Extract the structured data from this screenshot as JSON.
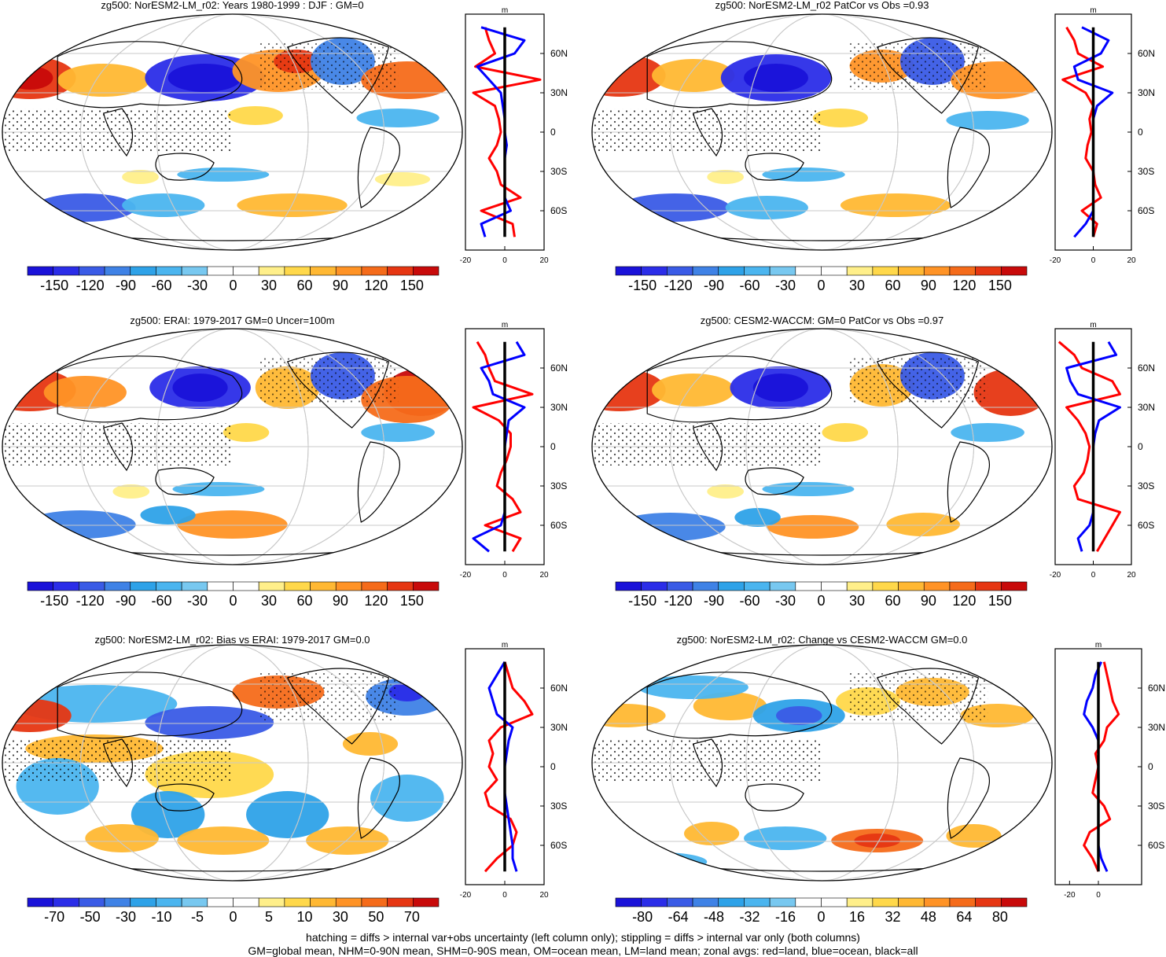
{
  "colors": {
    "map_levels": [
      "#1a12d9",
      "#2b2de8",
      "#3a5be6",
      "#3f82e6",
      "#2ea2e8",
      "#4bb5ef",
      "#78c8f0",
      "#ffffff",
      "#ffffff",
      "#ffef8a",
      "#ffd84a",
      "#ffb833",
      "#ff9326",
      "#f56b1a",
      "#e63612",
      "#c80a0a"
    ],
    "land_line": "#ff0000",
    "ocean_line": "#0000ff",
    "all_line": "#000000",
    "coast": "#000000",
    "grid": "#c8c8c8"
  },
  "chart_data": [
    {
      "type": "heatmap",
      "id": "p1",
      "title": "zg500: NorESM2-LM_r02: Years 1980-1999 : DJF : GM=0",
      "colorbar_labels": [
        "-150",
        "-120",
        "-90",
        "-60",
        "-30",
        "0",
        "30",
        "60",
        "90",
        "120",
        "150"
      ],
      "zonal": {
        "xlim": [
          -20,
          20
        ],
        "x_ticks": [
          "-20",
          "0",
          "20"
        ],
        "y_ticks": [
          "60N",
          "30N",
          "0",
          "30S",
          "60S"
        ],
        "units": "m",
        "lat": [
          80,
          70,
          60,
          50,
          40,
          30,
          20,
          10,
          0,
          -10,
          -20,
          -30,
          -40,
          -50,
          -60,
          -70,
          -80
        ],
        "land": [
          -10,
          -8,
          -5,
          -15,
          18,
          -16,
          -5,
          -3,
          -2,
          -4,
          -8,
          -4,
          -2,
          8,
          -12,
          4,
          5
        ],
        "ocean": [
          -12,
          10,
          5,
          -14,
          -8,
          -2,
          -1,
          0,
          0,
          1,
          0,
          0,
          0,
          0,
          3,
          -12,
          -10
        ],
        "all": [
          0,
          0,
          0,
          0,
          0,
          0,
          0,
          0,
          0,
          0,
          0,
          0,
          0,
          0,
          0,
          0,
          0
        ]
      }
    },
    {
      "type": "heatmap",
      "id": "p2",
      "title": "zg500: NorESM2-LM_r02 PatCor vs Obs =0.93",
      "colorbar_labels": [
        "-150",
        "-120",
        "-90",
        "-60",
        "-30",
        "0",
        "30",
        "60",
        "90",
        "120",
        "150"
      ],
      "zonal": {
        "xlim": [
          -20,
          20
        ],
        "x_ticks": [
          "-20",
          "0",
          "20"
        ],
        "y_ticks": [
          "60N",
          "30N",
          "0",
          "30S",
          "60S"
        ],
        "units": "m",
        "lat": [
          80,
          70,
          60,
          50,
          40,
          30,
          20,
          10,
          0,
          -10,
          -20,
          -30,
          -40,
          -50,
          -60,
          -70,
          -80
        ],
        "land": [
          -14,
          -10,
          -8,
          5,
          -16,
          -4,
          0,
          -2,
          -1,
          -3,
          -4,
          0,
          1,
          4,
          -6,
          2,
          0
        ],
        "ocean": [
          -6,
          8,
          4,
          -10,
          -8,
          10,
          2,
          0,
          0,
          0,
          0,
          0,
          0,
          0,
          0,
          -4,
          -10
        ],
        "all": [
          0,
          0,
          0,
          0,
          0,
          0,
          0,
          0,
          0,
          0,
          0,
          0,
          0,
          0,
          0,
          0,
          0
        ]
      }
    },
    {
      "type": "heatmap",
      "id": "p3",
      "title": "zg500: ERAI: 1979-2017 GM=0 Uncer=100m",
      "colorbar_labels": [
        "-150",
        "-120",
        "-90",
        "-60",
        "-30",
        "0",
        "30",
        "60",
        "90",
        "120",
        "150"
      ],
      "zonal": {
        "xlim": [
          -20,
          20
        ],
        "x_ticks": [
          "-20",
          "0",
          "20"
        ],
        "y_ticks": [
          "60N",
          "30N",
          "0",
          "30S",
          "60S"
        ],
        "units": "m",
        "lat": [
          80,
          70,
          60,
          50,
          40,
          30,
          20,
          10,
          0,
          -10,
          -20,
          -30,
          -40,
          -50,
          -60,
          -70,
          -80
        ],
        "land": [
          -14,
          -10,
          -8,
          -5,
          14,
          -16,
          -3,
          3,
          3,
          1,
          -2,
          -4,
          4,
          8,
          -10,
          8,
          4
        ],
        "ocean": [
          6,
          10,
          -12,
          -8,
          -6,
          10,
          2,
          1,
          0,
          0,
          0,
          0,
          0,
          0,
          -2,
          -16,
          -8
        ],
        "all": [
          0,
          0,
          0,
          0,
          0,
          0,
          0,
          0,
          0,
          0,
          0,
          0,
          0,
          0,
          0,
          0,
          0
        ]
      }
    },
    {
      "type": "heatmap",
      "id": "p4",
      "title": "zg500: CESM2-WACCM: GM=0 PatCor vs Obs =0.97",
      "colorbar_labels": [
        "-150",
        "-120",
        "-90",
        "-60",
        "-30",
        "0",
        "30",
        "60",
        "90",
        "120",
        "150"
      ],
      "zonal": {
        "xlim": [
          -20,
          20
        ],
        "x_ticks": [
          "-20",
          "0",
          "20"
        ],
        "y_ticks": [
          "60N",
          "30N",
          "0",
          "30S",
          "60S"
        ],
        "units": "m",
        "lat": [
          80,
          70,
          60,
          50,
          40,
          30,
          20,
          10,
          0,
          -10,
          -20,
          -30,
          -40,
          -50,
          -60,
          -70,
          -80
        ],
        "land": [
          -18,
          -10,
          -6,
          10,
          14,
          -14,
          -8,
          -4,
          -2,
          -3,
          -5,
          -10,
          -8,
          14,
          10,
          6,
          2
        ],
        "ocean": [
          8,
          12,
          -14,
          -12,
          -8,
          14,
          3,
          1,
          0,
          0,
          0,
          0,
          0,
          0,
          -2,
          -8,
          -6
        ],
        "all": [
          0,
          0,
          0,
          0,
          0,
          0,
          0,
          0,
          0,
          0,
          0,
          0,
          0,
          0,
          0,
          0,
          0
        ]
      }
    },
    {
      "type": "heatmap",
      "id": "p5",
      "title": "zg500: NorESM2-LM_r02: Bias vs ERAI: 1979-2017 GM=0.0",
      "colorbar_labels": [
        "-70",
        "-50",
        "-30",
        "-10",
        "-5",
        "0",
        "5",
        "10",
        "30",
        "50",
        "70"
      ],
      "zonal": {
        "xlim": [
          -20,
          20
        ],
        "x_ticks": [
          "-20",
          "0",
          "20"
        ],
        "y_ticks": [
          "60N",
          "30N",
          "0",
          "30S",
          "60S"
        ],
        "units": "m",
        "lat": [
          80,
          70,
          60,
          50,
          40,
          30,
          20,
          10,
          0,
          -10,
          -20,
          -30,
          -40,
          -50,
          -60,
          -70,
          -80
        ],
        "land": [
          0,
          2,
          4,
          10,
          14,
          -2,
          -8,
          -6,
          -8,
          -4,
          -10,
          -8,
          3,
          6,
          4,
          -4,
          -10
        ],
        "ocean": [
          0,
          -4,
          -8,
          -6,
          -4,
          4,
          2,
          1,
          0,
          0,
          0,
          1,
          2,
          3,
          4,
          4,
          6
        ],
        "all": [
          0,
          0,
          0,
          0,
          0,
          0,
          0,
          0,
          0,
          0,
          0,
          0,
          0,
          0,
          0,
          0,
          0
        ]
      }
    },
    {
      "type": "heatmap",
      "id": "p6",
      "title": "zg500: NorESM2-LM_r02: Change vs CESM2-WACCM GM=0.0",
      "colorbar_labels": [
        "-80",
        "-64",
        "-48",
        "-32",
        "-16",
        "0",
        "16",
        "32",
        "48",
        "64",
        "80"
      ],
      "zonal": {
        "xlim": [
          -30,
          30
        ],
        "x_ticks": [
          "-20",
          "0"
        ],
        "y_ticks": [
          "60N",
          "30N",
          "0",
          "30S",
          "60S"
        ],
        "units": "m",
        "lat": [
          80,
          70,
          60,
          50,
          40,
          30,
          20,
          10,
          0,
          -10,
          -20,
          -30,
          -40,
          -50,
          -60,
          -70,
          -80
        ],
        "land": [
          4,
          6,
          8,
          10,
          14,
          6,
          4,
          -2,
          0,
          -2,
          -4,
          4,
          8,
          -6,
          -10,
          -4,
          0
        ],
        "ocean": [
          2,
          -2,
          -4,
          -8,
          -10,
          -4,
          0,
          0,
          0,
          0,
          0,
          0,
          0,
          0,
          0,
          2,
          6
        ],
        "all": [
          0,
          0,
          0,
          0,
          0,
          0,
          0,
          0,
          0,
          0,
          0,
          0,
          0,
          0,
          0,
          0,
          0
        ]
      }
    }
  ],
  "footnote": {
    "line1": "hatching = diffs > internal var+obs uncertainty (left column only); stippling = diffs > internal var only (both columns)",
    "line2": "GM=global mean, NHM=0-90N mean, SHM=0-90S mean, OM=ocean mean, LM=land mean; zonal avgs: red=land, blue=ocean, black=all"
  }
}
